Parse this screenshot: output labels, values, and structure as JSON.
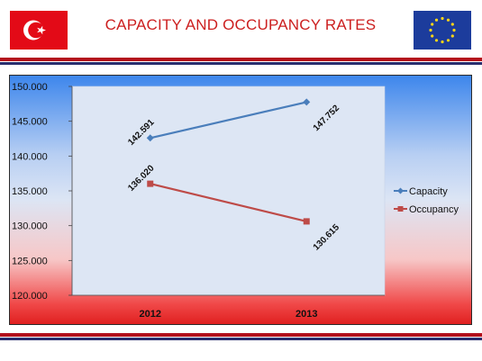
{
  "title": "CAPACITY AND OCCUPANCY RATES",
  "flags": {
    "left": {
      "icon": "turkey-flag-icon",
      "color": "#e30a17"
    },
    "right": {
      "icon": "eu-flag-icon",
      "color": "#1c3c9c"
    }
  },
  "chart_data": {
    "type": "line",
    "categories": [
      "2012",
      "2013"
    ],
    "series": [
      {
        "name": "Capacity",
        "values": [
          142591,
          147752
        ],
        "labels": [
          "142.591",
          "147.752"
        ],
        "color": "#4a7ebb",
        "marker": "diamond"
      },
      {
        "name": "Occupancy",
        "values": [
          136020,
          130615
        ],
        "labels": [
          "136.020",
          "130.615"
        ],
        "color": "#be4b48",
        "marker": "square"
      }
    ],
    "ylim": [
      120000,
      150000
    ],
    "yticks": [
      120000,
      125000,
      130000,
      135000,
      140000,
      145000,
      150000
    ],
    "ytick_labels": [
      "120.000",
      "125.000",
      "130.000",
      "135.000",
      "140.000",
      "145.000",
      "150.000"
    ],
    "legend": "right",
    "grid": false
  }
}
